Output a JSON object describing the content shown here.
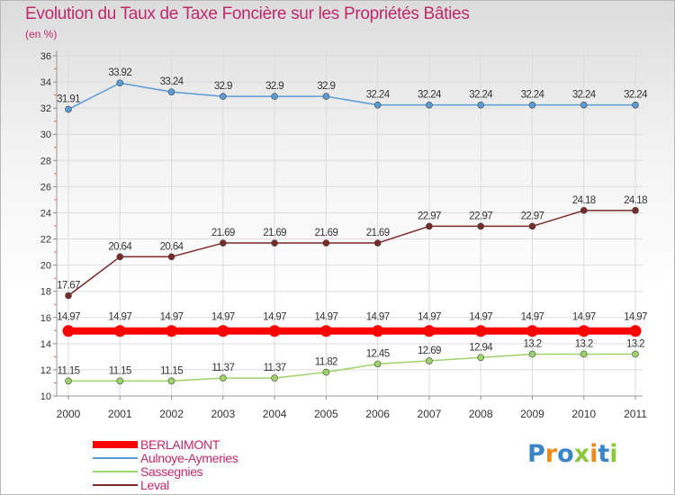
{
  "title": "Evolution du Taux de Taxe Foncière sur les Propriétés Bâties",
  "unit_label": "(en %)",
  "logo": {
    "letters": [
      {
        "char": "P",
        "color": "#3a85c8"
      },
      {
        "char": "r",
        "color": "#f08a1c"
      },
      {
        "char": "o",
        "color": "#3a85c8"
      },
      {
        "char": "x",
        "color": "#8cc63e"
      },
      {
        "char": "i",
        "color": "#f08a1c"
      },
      {
        "char": "t",
        "color": "#3a85c8"
      },
      {
        "char": "i",
        "color": "#8cc63e"
      }
    ]
  },
  "chart_data": {
    "type": "line",
    "x": [
      "2000",
      "2001",
      "2002",
      "2003",
      "2004",
      "2005",
      "2006",
      "2007",
      "2008",
      "2009",
      "2010",
      "2011"
    ],
    "ylim": [
      10,
      36
    ],
    "yticks": [
      10,
      12,
      14,
      16,
      18,
      20,
      22,
      24,
      26,
      28,
      30,
      32,
      34,
      36
    ],
    "grid": true,
    "legend_position": "bottom-left",
    "series": [
      {
        "name": "BERLAIMONT",
        "color": "#ff0000",
        "values": [
          14.97,
          14.97,
          14.97,
          14.97,
          14.97,
          14.97,
          14.97,
          14.97,
          14.97,
          14.97,
          14.97,
          14.97
        ],
        "labels": [
          "14.97",
          "14.97",
          "14.97",
          "14.97",
          "14.97",
          "14.97",
          "14.97",
          "14.97",
          "14.97",
          "14.97",
          "14.97",
          "14.97"
        ]
      },
      {
        "name": "Aulnoye-Aymeries",
        "color": "#5b9bd5",
        "values": [
          31.91,
          33.92,
          33.24,
          32.9,
          32.9,
          32.9,
          32.24,
          32.24,
          32.24,
          32.24,
          32.24,
          32.24
        ],
        "labels": [
          "31.91",
          "33.92",
          "33.24",
          "32.9",
          "32.9",
          "32.9",
          "32.24",
          "32.24",
          "32.24",
          "32.24",
          "32.24",
          "32.24"
        ]
      },
      {
        "name": "Sassegnies",
        "color": "#9ed36a",
        "values": [
          11.15,
          11.15,
          11.15,
          11.37,
          11.37,
          11.82,
          12.45,
          12.69,
          12.94,
          13.2,
          13.2,
          13.2
        ],
        "labels": [
          "11.15",
          "11.15",
          "11.15",
          "11.37",
          "11.37",
          "11.82",
          "12.45",
          "12.69",
          "12.94",
          "13.2",
          "13.2",
          "13.2"
        ]
      },
      {
        "name": "Leval",
        "color": "#7b2a2a",
        "values": [
          17.67,
          20.64,
          20.64,
          21.69,
          21.69,
          21.69,
          21.69,
          22.97,
          22.97,
          22.97,
          24.18,
          24.18
        ],
        "labels": [
          "17.67",
          "20.64",
          "20.64",
          "21.69",
          "21.69",
          "21.69",
          "21.69",
          "22.97",
          "22.97",
          "22.97",
          "24.18",
          "24.18"
        ]
      }
    ]
  }
}
